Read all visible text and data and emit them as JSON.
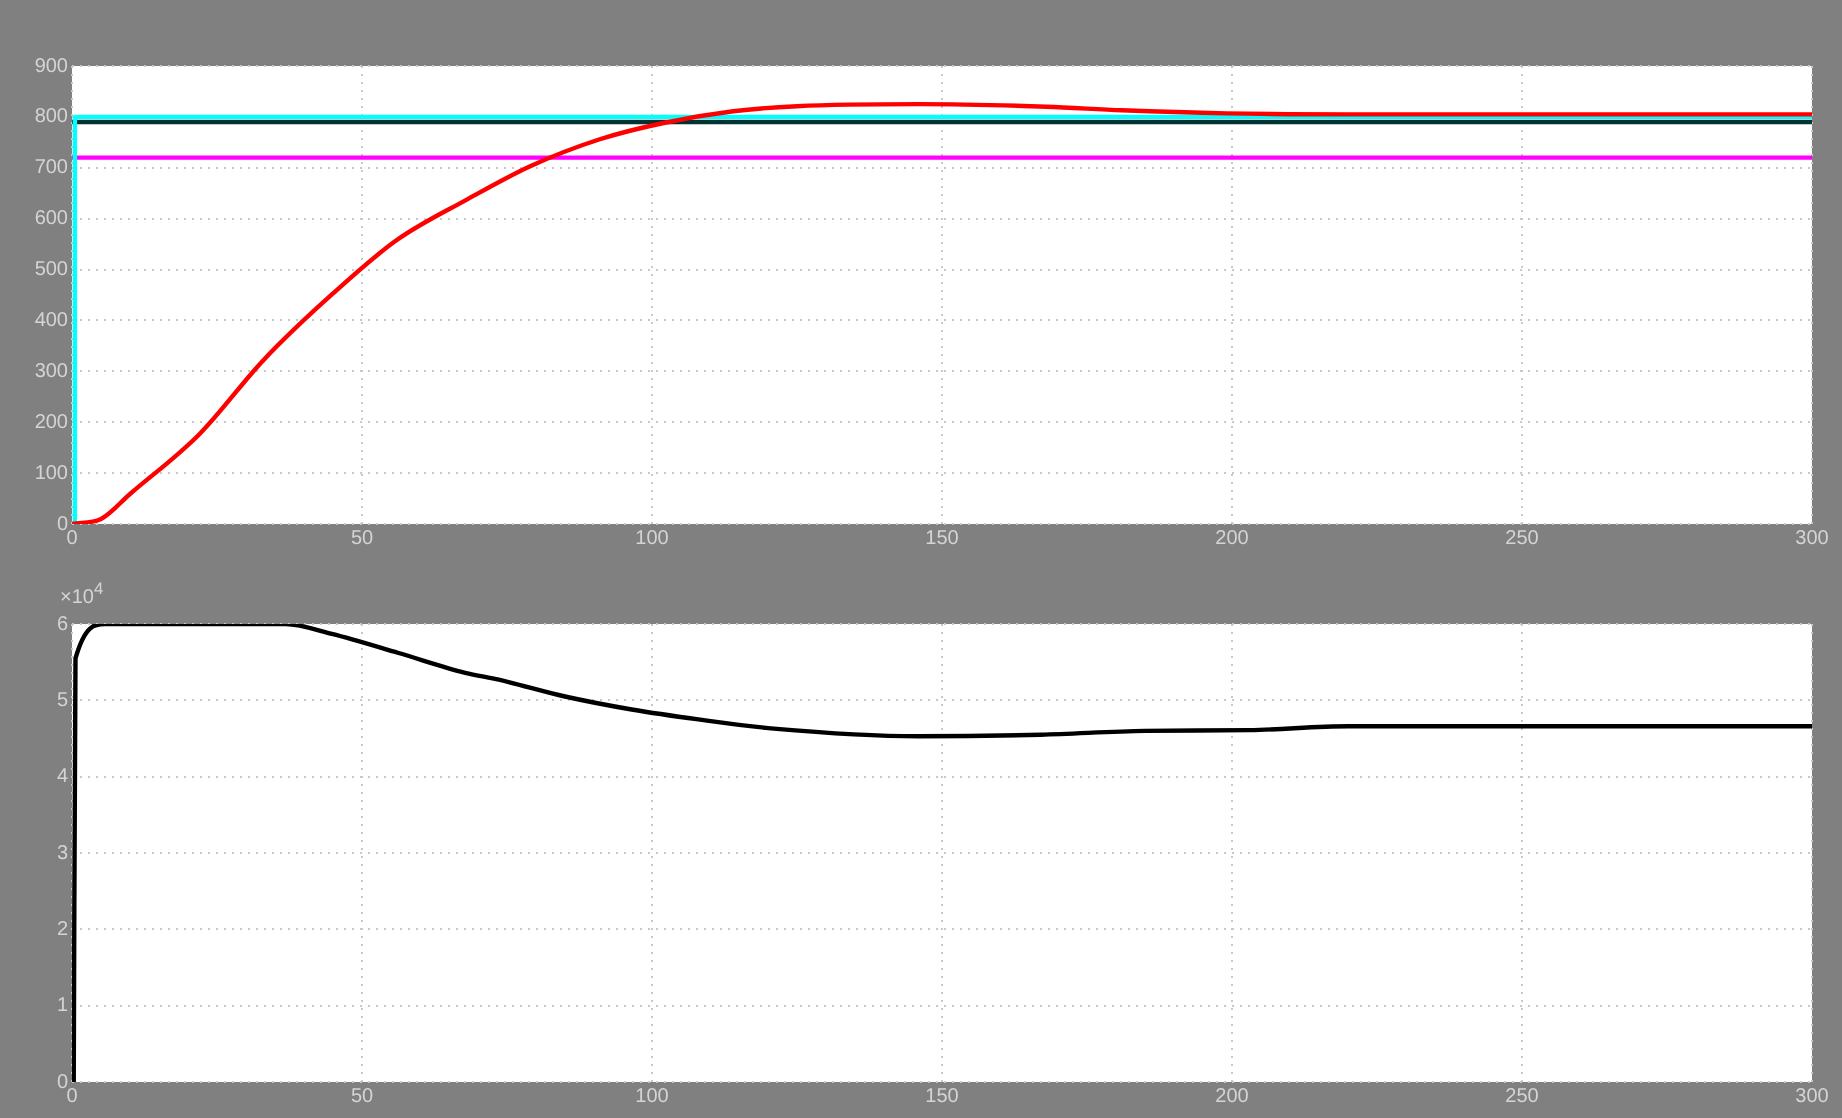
{
  "chart_data": [
    {
      "type": "line",
      "xlim": [
        0,
        300
      ],
      "xticks": [
        0,
        50,
        100,
        150,
        200,
        250,
        300
      ],
      "ylim": [
        0,
        900
      ],
      "yticks": [
        0,
        100,
        200,
        300,
        400,
        500,
        600,
        700,
        800,
        900
      ],
      "grid": true,
      "legend": false,
      "marker": "none",
      "line_style": "solid",
      "series": [
        {
          "color": "#ff00ff",
          "x": [
            0,
            300
          ],
          "values": [
            720,
            720
          ]
        },
        {
          "color": "#003333",
          "x": [
            0,
            300
          ],
          "values": [
            790,
            790
          ]
        },
        {
          "color": "#00ffff",
          "x": [
            0,
            0.5,
            0.5,
            300
          ],
          "values": [
            0,
            0,
            800,
            800
          ]
        },
        {
          "color": "#ff0000",
          "x": [
            0,
            5,
            10,
            22,
            33,
            45,
            56,
            68,
            79,
            91,
            102,
            114,
            125,
            146,
            168,
            181,
            199,
            220,
            300
          ],
          "values": [
            0,
            10,
            59,
            177,
            322,
            453,
            558,
            637,
            703,
            756,
            788,
            811,
            821,
            825,
            820,
            813,
            807,
            805,
            805
          ]
        }
      ]
    },
    {
      "type": "line",
      "xlim": [
        0,
        300
      ],
      "xticks": [
        0,
        50,
        100,
        150,
        200,
        250,
        300
      ],
      "ylim": [
        0,
        6
      ],
      "yticks": [
        0,
        1,
        2,
        3,
        4,
        5,
        6
      ],
      "grid": true,
      "legend": false,
      "marker": "none",
      "line_style": "solid",
      "annotations": [
        "×10$^{4}$"
      ],
      "series": [
        {
          "color": "#000000",
          "x": [
            0.3,
            0.6,
            5.7,
            36.8,
            44.8,
            56.3,
            67.8,
            73.6,
            85,
            96.5,
            108,
            121,
            146,
            167,
            185,
            203,
            220,
            300
          ],
          "values": [
            0,
            5.55,
            6,
            6,
            5.87,
            5.62,
            5.36,
            5.27,
            5.05,
            4.88,
            4.75,
            4.63,
            4.53,
            4.55,
            4.6,
            4.61,
            4.66,
            4.66
          ]
        }
      ]
    }
  ]
}
